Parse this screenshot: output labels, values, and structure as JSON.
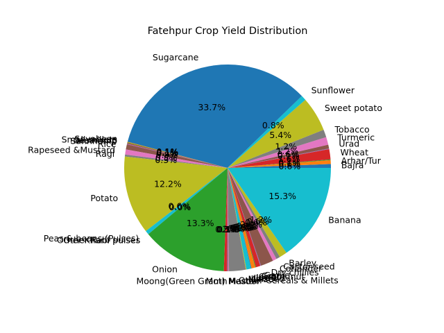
{
  "chart_data": {
    "type": "pie",
    "title": "Fatehpur Crop Yield Distribution",
    "start_angle_deg": 0,
    "direction": "counterclockwise",
    "autopct_format": "%.1f%%",
    "colors": [
      "#1f77b4",
      "#ff7f0e",
      "#2ca02c",
      "#d62728",
      "#9467bd",
      "#8c564b",
      "#e377c2",
      "#7f7f7f",
      "#bcbd22",
      "#17becf"
    ],
    "slices": [
      {
        "label": "Bajra",
        "value": 0.6
      },
      {
        "label": "Arhar/Tur",
        "value": 0.6
      },
      {
        "label": "",
        "value": 0.1
      },
      {
        "label": "Wheat",
        "value": 1.6
      },
      {
        "label": "",
        "value": 0.1
      },
      {
        "label": "Urad",
        "value": 0.6
      },
      {
        "label": "Turmeric",
        "value": 1.2
      },
      {
        "label": "Tobacco",
        "value": 1.2
      },
      {
        "label": "Sweet potato",
        "value": 5.4
      },
      {
        "label": "Sunflower",
        "value": 0.8
      },
      {
        "label": "Sugarcane",
        "value": 33.6
      },
      {
        "label": "Soyabean",
        "value": 0.1
      },
      {
        "label": "Small millets",
        "value": 0.1
      },
      {
        "label": "Sesamum",
        "value": 0.1
      },
      {
        "label": "Sannhamp",
        "value": 0.1
      },
      {
        "label": "Rice",
        "value": 0.8
      },
      {
        "label": "Rapeseed &Mustard",
        "value": 0.8
      },
      {
        "label": "Ragi",
        "value": 0.3
      },
      {
        "label": "Potato",
        "value": 12.2
      },
      {
        "label": "Peas & beans (Pulses)",
        "value": 0.6
      },
      {
        "label": "Other Rabi pulses",
        "value": 0.0
      },
      {
        "label": "Other Kharif pulses",
        "value": 0.0
      },
      {
        "label": "Onion",
        "value": 13.3
      },
      {
        "label": "Moong(Green Gram)",
        "value": 0.5
      },
      {
        "label": "Moth",
        "value": 0.1
      },
      {
        "label": "Mesta",
        "value": 0.1
      },
      {
        "label": "Masoor",
        "value": 0.1
      },
      {
        "label": "Other Cereals & Millets",
        "value": 2.6
      },
      {
        "label": "Maize",
        "value": 0.1
      },
      {
        "label": "Linseed",
        "value": 0.7
      },
      {
        "label": "Jute",
        "value": 0.1
      },
      {
        "label": "Jowar",
        "value": 0.6
      },
      {
        "label": "Groundnut",
        "value": 0.1
      },
      {
        "label": "Gram",
        "value": 0.7
      },
      {
        "label": "Garlic",
        "value": 0.1
      },
      {
        "label": "Dry chillies",
        "value": 2.0
      },
      {
        "label": "Coriander",
        "value": 0.6
      },
      {
        "label": "Castor seed",
        "value": 0.6
      },
      {
        "label": "Barley",
        "value": 1.2
      },
      {
        "label": "Banana",
        "value": 15.3
      }
    ]
  }
}
